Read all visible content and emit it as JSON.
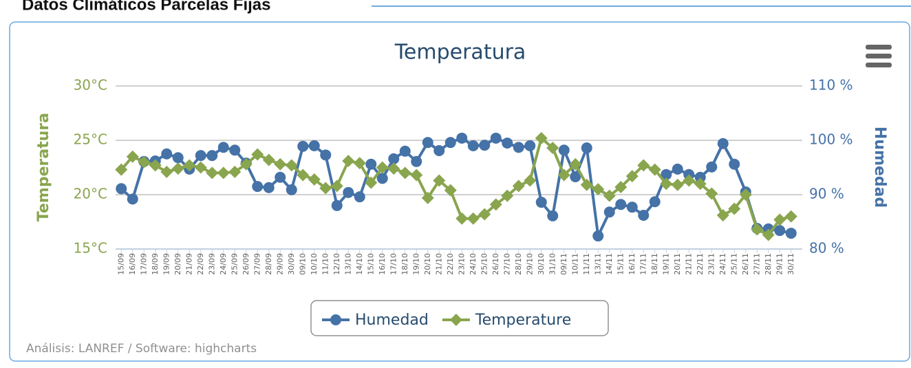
{
  "header": {
    "title": "Datos Climáticos Parcelas Fijas"
  },
  "chart_data": {
    "type": "line",
    "title": "Temperatura",
    "y_label": "Temperatura",
    "y2_label": "Humedad",
    "credits": "Análisis: LANREF / Software: highcharts",
    "categories": [
      "15/09",
      "16/09",
      "17/09",
      "18/09",
      "19/09",
      "20/09",
      "21/09",
      "22/09",
      "23/09",
      "24/09",
      "25/09",
      "26/09",
      "27/09",
      "28/09",
      "29/09",
      "30/09",
      "09/10",
      "10/10",
      "11/10",
      "12/10",
      "13/10",
      "14/10",
      "15/10",
      "16/10",
      "17/10",
      "18/10",
      "19/10",
      "20/10",
      "21/10",
      "22/10",
      "23/10",
      "24/10",
      "25/10",
      "26/10",
      "27/10",
      "28/10",
      "29/10",
      "30/10",
      "31/10",
      "09/11",
      "10/11",
      "11/11",
      "13/11",
      "14/11",
      "15/11",
      "16/11",
      "17/11",
      "18/11",
      "19/11",
      "20/11",
      "21/11",
      "22/11",
      "23/11",
      "24/11",
      "25/11",
      "26/11",
      "27/11",
      "28/11",
      "29/11",
      "30/11"
    ],
    "series": [
      {
        "name": "Humedad",
        "color": "#4572a7",
        "marker": "circle",
        "axis": "y2",
        "values": [
          91.1,
          89.2,
          96.1,
          96.2,
          97.5,
          96.8,
          94.7,
          97.2,
          97.2,
          98.7,
          98.2,
          95.8,
          91.5,
          91.3,
          93.2,
          90.9,
          98.9,
          99.0,
          97.3,
          88.0,
          90.4,
          89.6,
          95.6,
          93.0,
          96.6,
          98.0,
          96.1,
          99.6,
          98.1,
          99.6,
          100.4,
          99.0,
          99.1,
          100.4,
          99.5,
          98.7,
          99.0,
          88.6,
          86.1,
          98.2,
          93.3,
          98.6,
          82.4,
          86.8,
          88.2,
          87.7,
          86.2,
          88.7,
          93.7,
          94.7,
          93.7,
          93.2,
          95.1,
          99.4,
          95.6,
          90.5,
          83.8,
          83.7,
          83.4,
          82.9
        ]
      },
      {
        "name": "Temperature",
        "color": "#89a54e",
        "marker": "diamond",
        "axis": "y",
        "values": [
          22.3,
          23.5,
          23.0,
          22.7,
          22.1,
          22.4,
          22.7,
          22.5,
          22.0,
          22.0,
          22.1,
          22.8,
          23.7,
          23.2,
          22.8,
          22.7,
          21.8,
          21.4,
          20.6,
          20.8,
          23.1,
          22.9,
          21.1,
          22.5,
          22.4,
          22.0,
          21.8,
          19.7,
          21.3,
          20.4,
          17.8,
          17.8,
          18.2,
          19.1,
          19.9,
          20.8,
          21.3,
          25.2,
          24.3,
          21.8,
          22.8,
          20.9,
          20.5,
          19.9,
          20.7,
          21.7,
          22.7,
          22.3,
          21.0,
          20.9,
          21.3,
          21.0,
          20.1,
          18.1,
          18.7,
          20.0,
          16.8,
          16.3,
          17.7,
          18.0
        ]
      }
    ],
    "ylim": [
      15,
      30
    ],
    "yticks": [
      {
        "value": 15,
        "label": "15°C"
      },
      {
        "value": 20,
        "label": "20°C"
      },
      {
        "value": 25,
        "label": "25°C"
      },
      {
        "value": 30,
        "label": "30°C"
      }
    ],
    "y2lim": [
      80,
      110
    ],
    "y2ticks": [
      {
        "value": 80,
        "label": "80 %"
      },
      {
        "value": 90,
        "label": "90 %"
      },
      {
        "value": 100,
        "label": "100 %"
      },
      {
        "value": 110,
        "label": "110 %"
      }
    ],
    "grid": true
  }
}
